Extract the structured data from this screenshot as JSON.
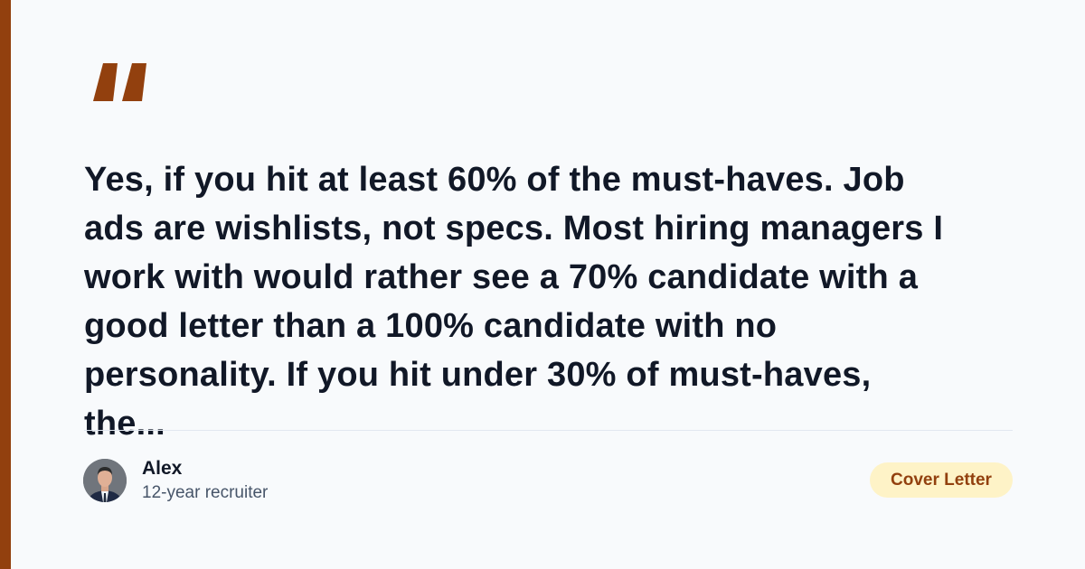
{
  "colors": {
    "accent": "#92400e",
    "background": "#f8fafc",
    "badge_bg": "#fef3c7",
    "text": "#111827"
  },
  "quote": {
    "icon": "quote-mark-icon",
    "lines": [
      "Yes, if you hit at least 60% of the must-haves. Job",
      "ads are wishlists, not specs. Most hiring managers I",
      "work with would rather see a 70% candidate with a",
      "good letter than a 100% candidate with no",
      "personality. If you hit under 30% of must-haves,",
      "the..."
    ]
  },
  "author": {
    "name": "Alex",
    "role": "12-year recruiter"
  },
  "badge": {
    "label": "Cover Letter"
  }
}
